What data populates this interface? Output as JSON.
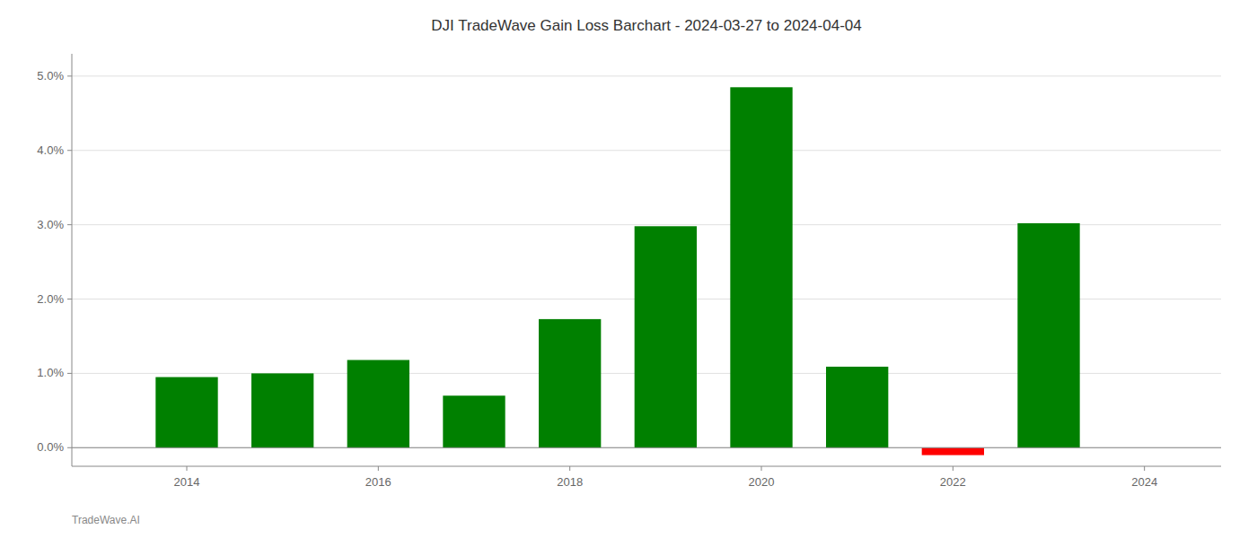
{
  "chart_data": {
    "type": "bar",
    "title": "DJI TradeWave Gain Loss Barchart - 2024-03-27 to 2024-04-04",
    "annotations": [
      "TradeWave.AI"
    ],
    "x": [
      2014,
      2015,
      2016,
      2017,
      2018,
      2019,
      2020,
      2021,
      2022,
      2023
    ],
    "values": [
      0.0095,
      0.01,
      0.0118,
      0.007,
      0.0173,
      0.0298,
      0.0485,
      0.0109,
      -0.001,
      0.0302
    ],
    "colors": [
      "#008000",
      "#008000",
      "#008000",
      "#008000",
      "#008000",
      "#008000",
      "#008000",
      "#008000",
      "#ff0000",
      "#008000"
    ],
    "xlim": [
      2012.8,
      2024.8
    ],
    "xticks": [
      2014,
      2016,
      2018,
      2020,
      2022,
      2024
    ],
    "ylim": [
      -0.0025,
      0.053
    ],
    "yticks": [
      {
        "value": 0.0,
        "label": "0.0%"
      },
      {
        "value": 0.01,
        "label": "1.0%"
      },
      {
        "value": 0.02,
        "label": "2.0%"
      },
      {
        "value": 0.03,
        "label": "3.0%"
      },
      {
        "value": 0.04,
        "label": "4.0%"
      },
      {
        "value": 0.05,
        "label": "5.0%"
      }
    ],
    "grid": true
  }
}
